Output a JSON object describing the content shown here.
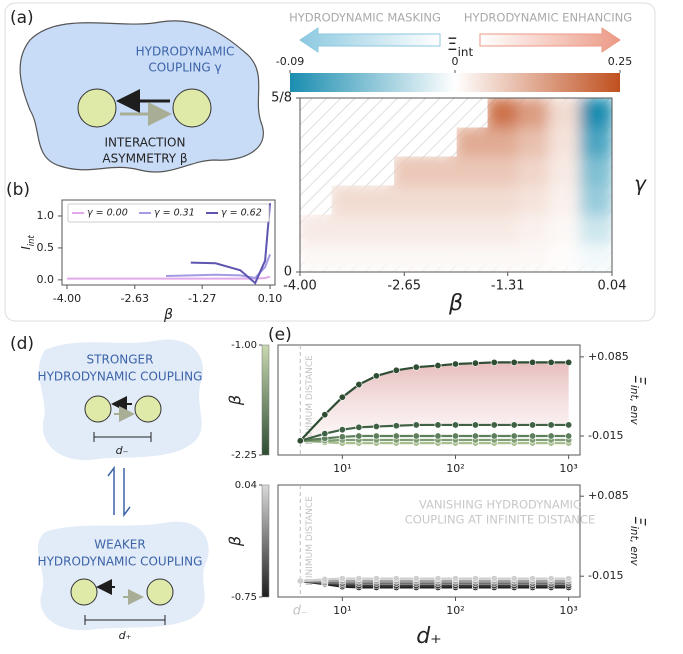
{
  "diagrams": {
    "a": {
      "label": "(a)",
      "coupling": [
        "HYDRODYNAMIC",
        "COUPLING γ"
      ],
      "asymmetry": [
        "INTERACTION",
        "ASYMMETRY β"
      ]
    },
    "d": {
      "label": "(d)",
      "strong": [
        "STRONGER",
        "HYDRODYNAMIC COUPLING"
      ],
      "d_minus": "d₋",
      "weak": [
        "WEAKER",
        "HYDRODYNAMIC COUPLING"
      ],
      "d_plus": "d₊"
    }
  },
  "chart_data": [
    {
      "type": "line",
      "label": "(b)",
      "xlabel": "β",
      "ylabel": [
        "I",
        "int"
      ],
      "legend": "top",
      "x": [
        -4,
        -3,
        -2,
        -1.5,
        -1,
        -0.5,
        -0.2,
        0,
        0.1
      ],
      "xlim": [
        -4.1,
        0.2
      ],
      "ylim": [
        -0.08,
        1.25
      ],
      "xticks": [
        {
          "value": -4,
          "label": "-4.00"
        },
        -2.63,
        -1.27,
        {
          "value": 0.1,
          "label": "0.10"
        }
      ],
      "yticks": [
        {
          "value": 0,
          "label": "0.0"
        },
        0.5,
        {
          "value": 1,
          "label": "1.0"
        }
      ],
      "series": [
        {
          "name": "γ = 0.00",
          "color": "#e2a9ea",
          "values": [
            0.02,
            0.02,
            0.02,
            0.02,
            0.02,
            0.02,
            0.02,
            0.03,
            0.05
          ]
        },
        {
          "name": "γ = 0.31",
          "color": "#a49ce2",
          "values": [
            null,
            null,
            0.06,
            0.07,
            0.08,
            0.07,
            0.03,
            0.2,
            0.4
          ]
        },
        {
          "name": "γ = 0.62",
          "color": "#5d55b0",
          "values": [
            null,
            null,
            null,
            0.27,
            0.26,
            0.15,
            -0.05,
            0.3,
            1.2
          ]
        }
      ]
    },
    {
      "type": "heatmap",
      "label": "(c)",
      "xlabel": "β",
      "ylabel": "γ",
      "x": [
        -3.8,
        -3.4,
        -2.99,
        -2.59,
        -2.18,
        -1.78,
        -1.37,
        -0.97,
        -0.57,
        -0.16
      ],
      "y": [
        0.052,
        0.156,
        0.26,
        0.365,
        0.469,
        0.573
      ],
      "z": [
        [
          0.01,
          0.01,
          0.01,
          0.01,
          0.01,
          0.01,
          0.01,
          0.01,
          0.005,
          -0.005
        ],
        [
          0.03,
          0.03,
          0.03,
          0.03,
          0.03,
          0.03,
          0.03,
          0.02,
          0.01,
          -0.02
        ],
        [
          null,
          0.05,
          0.05,
          0.05,
          0.05,
          0.05,
          0.05,
          0.04,
          0.02,
          -0.04
        ],
        [
          null,
          null,
          null,
          0.08,
          0.08,
          0.08,
          0.08,
          0.06,
          0.03,
          -0.05
        ],
        [
          null,
          null,
          null,
          null,
          null,
          0.12,
          0.12,
          0.09,
          0.04,
          -0.07
        ],
        [
          null,
          null,
          null,
          null,
          null,
          null,
          0.2,
          0.14,
          0.05,
          -0.09
        ]
      ],
      "xlim": [
        -4,
        0.04
      ],
      "ylim": [
        0,
        0.625
      ],
      "xticks": [
        {
          "value": -4,
          "label": "-4.00"
        },
        -2.65,
        -1.31,
        0.04
      ],
      "yticks": [
        0,
        {
          "value": 0.625,
          "label": "5/8"
        }
      ],
      "colorbar": {
        "label": [
          "Ξ",
          "int"
        ],
        "left_note": "HYDRODYNAMIC MASKING",
        "right_note": "HYDRODYNAMIC ENHANCING",
        "ticks": [
          -0.09,
          0,
          0.25
        ],
        "colors": [
          "#1a8db0",
          "#ffffff",
          "#c0501f"
        ]
      }
    },
    {
      "type": "line",
      "label": "(e)",
      "log_x": true,
      "markers": true,
      "shade": true,
      "y_axis_side": "right",
      "ylabel": [
        "Ξ",
        "int, env"
      ],
      "x": [
        4.25,
        7,
        10,
        14,
        20,
        30,
        45,
        70,
        100,
        150,
        220,
        330,
        480,
        700,
        1000
      ],
      "xlim": [
        2.7,
        1260
      ],
      "ylim": [
        -0.039,
        0.1
      ],
      "xticks": [
        {
          "value": 10,
          "label": "10¹"
        },
        {
          "value": 100,
          "label": "10²"
        },
        {
          "value": 1000,
          "label": "10³"
        }
      ],
      "yticks": [
        {
          "value": 0.085,
          "label": "+0.085"
        },
        -0.015
      ],
      "vline": {
        "value": 4.25,
        "label": "MINIMUM DISTANCE"
      },
      "colorbar": {
        "label": "β",
        "ticks": [
          {
            "value": -1,
            "label": "-1.00"
          },
          -2.25
        ],
        "colors": [
          "#c9d9b1",
          "#2e4d33"
        ]
      },
      "series": [
        {
          "color": "#2e4d33",
          "values": [
            -0.021,
            0.012,
            0.034,
            0.05,
            0.061,
            0.068,
            0.072,
            0.074,
            0.076,
            0.077,
            0.078,
            0.078,
            0.078,
            0.078,
            0.078
          ]
        },
        {
          "color": "#3f6144",
          "values": [
            -0.021,
            -0.012,
            -0.007,
            -0.004,
            -0.003,
            -0.002,
            -0.001,
            -0.001,
            -0.001,
            -0.001,
            -0.001,
            -0.001,
            -0.001,
            -0.001,
            -0.001
          ]
        },
        {
          "color": "#5e7f5c",
          "values": [
            -0.021,
            -0.018,
            -0.016,
            -0.015,
            -0.015,
            -0.015,
            -0.015,
            -0.015,
            -0.015,
            -0.015,
            -0.015,
            -0.015,
            -0.015,
            -0.015,
            -0.015
          ]
        },
        {
          "color": "#7f9c72",
          "values": [
            -0.021,
            -0.021,
            -0.02,
            -0.02,
            -0.02,
            -0.02,
            -0.02,
            -0.02,
            -0.02,
            -0.02,
            -0.02,
            -0.02,
            -0.02,
            -0.02,
            -0.02
          ]
        },
        {
          "color": "#a8bf90",
          "values": [
            -0.021,
            -0.023,
            -0.024,
            -0.024,
            -0.024,
            -0.024,
            -0.024,
            -0.024,
            -0.024,
            -0.024,
            -0.024,
            -0.024,
            -0.024,
            -0.024,
            -0.024
          ]
        }
      ]
    },
    {
      "type": "line",
      "log_x": true,
      "markers": true,
      "y_axis_side": "right",
      "ylabel": [
        "Ξ",
        "int, env"
      ],
      "xlabel": "d₊",
      "annotation": [
        "VANISHING HYDRODYNAMIC",
        "COUPLING AT INFINITE DISTANCE"
      ],
      "x": [
        4.25,
        7,
        10,
        14,
        20,
        30,
        45,
        70,
        100,
        150,
        220,
        330,
        480,
        700,
        1000
      ],
      "xlim": [
        2.7,
        1260
      ],
      "ylim": [
        -0.041,
        0.099
      ],
      "xticks": [
        {
          "value": 10,
          "label": "10¹"
        },
        {
          "value": 100,
          "label": "10²"
        },
        {
          "value": 1000,
          "label": "10³"
        }
      ],
      "yticks": [
        {
          "value": 0.085,
          "label": "+0.085"
        },
        -0.015
      ],
      "vline": {
        "value": 4.25,
        "label": "MINIMUM DISTANCE",
        "tick_label": "d₋"
      },
      "colorbar": {
        "label": "β",
        "ticks": [
          0.04,
          -0.75
        ],
        "colors": [
          "#d9d9d9",
          "#1e1e1e"
        ]
      },
      "series": [
        {
          "color": "#cfcfcf",
          "values": [
            -0.021,
            -0.019,
            -0.018,
            -0.018,
            -0.018,
            -0.018,
            -0.018,
            -0.018,
            -0.018,
            -0.018,
            -0.018,
            -0.018,
            -0.018,
            -0.018,
            -0.018
          ]
        },
        {
          "color": "#a0a0a0",
          "values": [
            -0.021,
            -0.021,
            -0.021,
            -0.021,
            -0.021,
            -0.021,
            -0.021,
            -0.021,
            -0.021,
            -0.021,
            -0.021,
            -0.021,
            -0.021,
            -0.021,
            -0.021
          ]
        },
        {
          "color": "#6e6e6e",
          "values": [
            -0.021,
            -0.023,
            -0.024,
            -0.024,
            -0.024,
            -0.024,
            -0.024,
            -0.024,
            -0.024,
            -0.024,
            -0.024,
            -0.024,
            -0.024,
            -0.024,
            -0.024
          ]
        },
        {
          "color": "#3a3a3a",
          "values": [
            -0.021,
            -0.024,
            -0.026,
            -0.027,
            -0.027,
            -0.027,
            -0.027,
            -0.027,
            -0.027,
            -0.027,
            -0.027,
            -0.027,
            -0.027,
            -0.027,
            -0.027
          ]
        },
        {
          "color": "#1e1e1e",
          "values": [
            -0.021,
            -0.025,
            -0.028,
            -0.029,
            -0.029,
            -0.029,
            -0.029,
            -0.029,
            -0.029,
            -0.029,
            -0.029,
            -0.029,
            -0.029,
            -0.029,
            -0.029
          ]
        }
      ]
    }
  ]
}
